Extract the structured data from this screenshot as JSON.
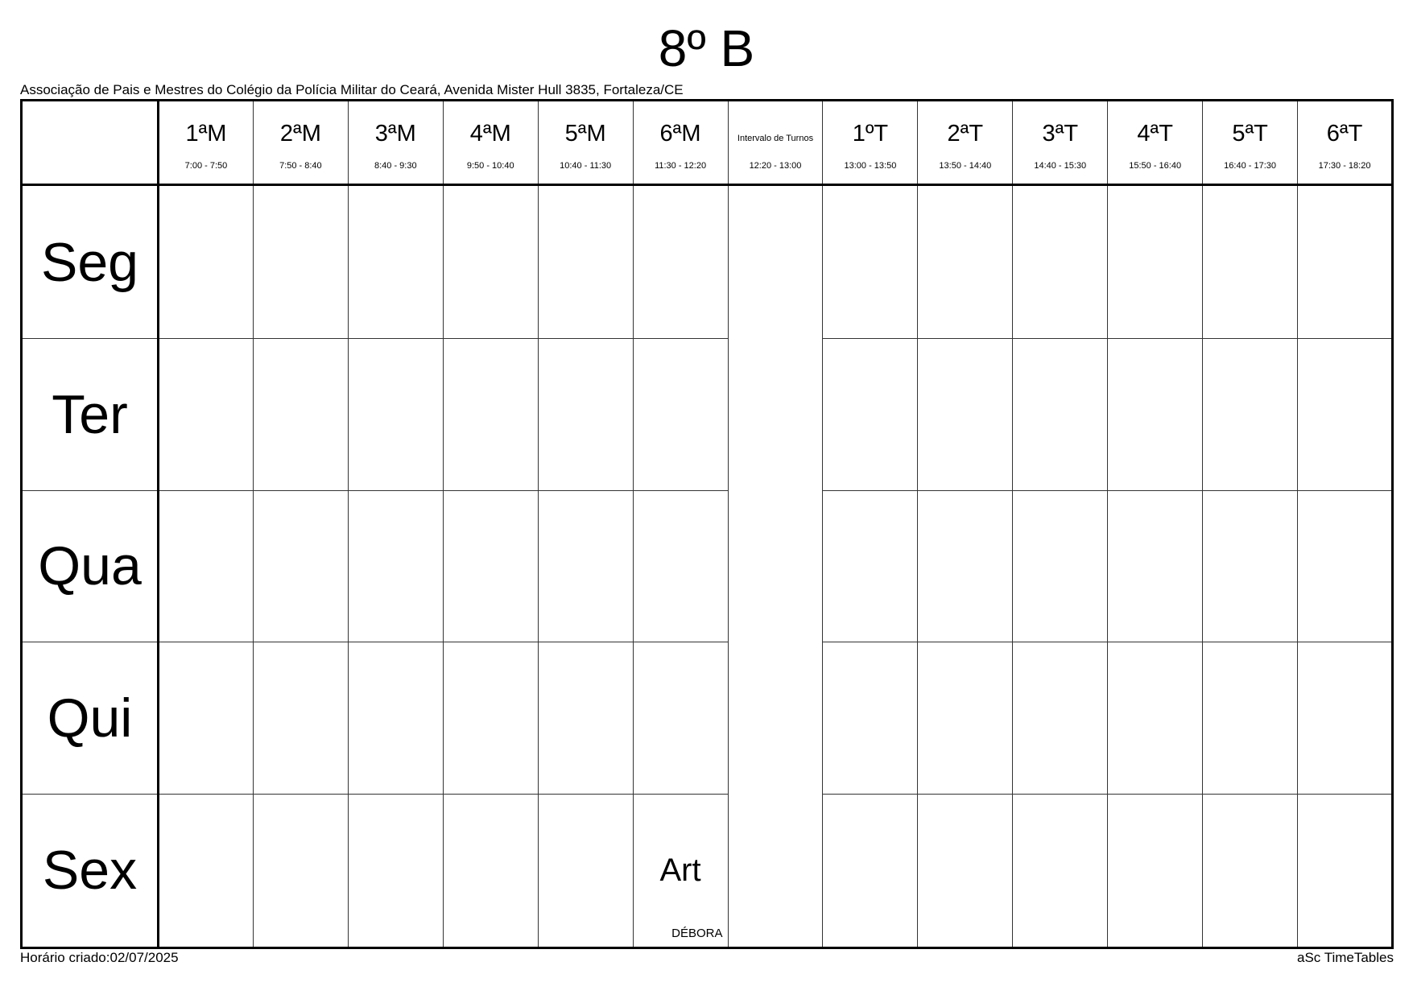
{
  "title": "8º B",
  "subtitle": "Associação de Pais e Mestres do Colégio da Polícia Militar do Ceará, Avenida Mister Hull 3835, Fortaleza/CE",
  "periods": [
    {
      "name": "1ªM",
      "time": "7:00 - 7:50"
    },
    {
      "name": "2ªM",
      "time": "7:50 - 8:40"
    },
    {
      "name": "3ªM",
      "time": "8:40 - 9:30"
    },
    {
      "name": "4ªM",
      "time": "9:50 - 10:40"
    },
    {
      "name": "5ªM",
      "time": "10:40 - 11:30"
    },
    {
      "name": "6ªM",
      "time": "11:30 - 12:20"
    },
    {
      "name": "Intervalo de Turnos",
      "time": "12:20 - 13:00"
    },
    {
      "name": "1ºT",
      "time": "13:00 - 13:50"
    },
    {
      "name": "2ªT",
      "time": "13:50 - 14:40"
    },
    {
      "name": "3ªT",
      "time": "14:40 - 15:30"
    },
    {
      "name": "4ªT",
      "time": "15:50 - 16:40"
    },
    {
      "name": "5ªT",
      "time": "16:40 - 17:30"
    },
    {
      "name": "6ªT",
      "time": "17:30 - 18:20"
    }
  ],
  "days": [
    "Seg",
    "Ter",
    "Qua",
    "Qui",
    "Sex"
  ],
  "lessons": [
    {
      "day": "Sex",
      "period": "6ªM",
      "subject": "Art",
      "teacher": "DÉBORA"
    }
  ],
  "footer": {
    "created": "Horário criado:02/07/2025",
    "brand": "aSc TimeTables"
  }
}
